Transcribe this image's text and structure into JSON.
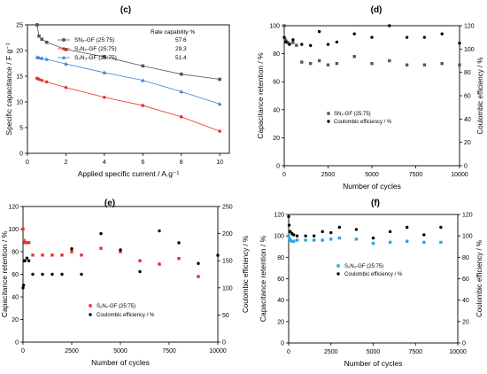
{
  "colors": {
    "black": "#333333",
    "dark_gray": "#555555",
    "red": "#e8302c",
    "blue": "#3a7fd5",
    "cyan": "#2aa6e0"
  },
  "chart_data": [
    {
      "panel": "(c)",
      "type": "line",
      "xlabel": "Applied specific current / A.g⁻¹",
      "ylabel": "Specific capacitance / F g⁻¹",
      "xlim": [
        0,
        10.5
      ],
      "ylim": [
        0,
        25
      ],
      "xticks": [
        "0",
        "2",
        "4",
        "6",
        "8",
        "10"
      ],
      "yticks": [
        "0",
        "5",
        "10",
        "15",
        "20",
        "25"
      ],
      "legend_title": "Rate capability %",
      "series": [
        {
          "name": "SN₂-GF (25:75)",
          "rate": "57.6",
          "color": "#555555",
          "marker": "square",
          "x": [
            0.5,
            0.6,
            0.75,
            1,
            2,
            4,
            6,
            8,
            10
          ],
          "y": [
            25,
            22.8,
            22.2,
            21.6,
            20.2,
            18.8,
            17.0,
            15.4,
            14.4
          ]
        },
        {
          "name": "S₂N₂-GF (25:75)",
          "rate": "29.3",
          "color": "#e8302c",
          "marker": "circle",
          "x": [
            0.5,
            0.6,
            0.75,
            1,
            2,
            4,
            6,
            8,
            10
          ],
          "y": [
            14.6,
            14.4,
            14.2,
            13.9,
            12.8,
            10.9,
            9.3,
            7.1,
            4.3
          ]
        },
        {
          "name": "S₂N₃-GF (25:75)",
          "rate": "51.4",
          "color": "#3a7fd5",
          "marker": "triangle",
          "x": [
            0.5,
            0.6,
            0.75,
            1,
            2,
            4,
            6,
            8,
            10
          ],
          "y": [
            18.7,
            18.6,
            18.5,
            18.3,
            17.4,
            15.7,
            14.2,
            12.0,
            9.6
          ]
        }
      ]
    },
    {
      "panel": "(d)",
      "type": "scatter",
      "xlabel": "Number of cycles",
      "ylabel": "Capacitance retention / %",
      "ylabel2": "Coulombic efficiency / %",
      "xlim": [
        0,
        10000
      ],
      "ylim": [
        0,
        100
      ],
      "ylim2": [
        0,
        120
      ],
      "xticks": [
        "0",
        "2500",
        "5000",
        "7500",
        "10000"
      ],
      "yticks": [
        "0",
        "20",
        "40",
        "60",
        "80",
        "100"
      ],
      "yticks2": [
        "0",
        "20",
        "40",
        "60",
        "80",
        "100",
        "120"
      ],
      "legend": [
        "SN₂-GF (25:75)",
        "Coulombic efficiency / %"
      ],
      "series": [
        {
          "name": "SN₂-GF (25:75)",
          "axis": "left",
          "marker": "square",
          "color": "#555555",
          "x": [
            0,
            50,
            100,
            200,
            300,
            500,
            700,
            1000,
            1500,
            2000,
            2500,
            3000,
            4000,
            5000,
            6000,
            7000,
            8000,
            9000,
            10000
          ],
          "y": [
            100,
            90,
            89,
            88,
            87,
            88,
            86,
            74,
            73,
            75,
            72,
            73,
            78,
            73,
            75,
            72,
            72,
            73,
            72
          ]
        },
        {
          "name": "Coulombic efficiency / %",
          "axis": "right",
          "marker": "circle",
          "color": "#000000",
          "x": [
            0,
            100,
            300,
            500,
            1000,
            1500,
            2000,
            2500,
            3000,
            4000,
            5000,
            6000,
            7000,
            8000,
            9000,
            10000
          ],
          "y": [
            110,
            106,
            104,
            108,
            104,
            103,
            115,
            104,
            106,
            113,
            110,
            120,
            110,
            110,
            113,
            105
          ]
        }
      ]
    },
    {
      "panel": "(e)",
      "type": "scatter",
      "xlabel": "Number of cycles",
      "ylabel": "Capacitance retention / %",
      "ylabel2": "Coulombic efficiency / %",
      "xlim": [
        0,
        10000
      ],
      "ylim": [
        0,
        120
      ],
      "ylim2": [
        0,
        250
      ],
      "xticks": [
        "0",
        "2500",
        "5000",
        "7500",
        "10000"
      ],
      "yticks": [
        "0",
        "20",
        "40",
        "60",
        "80",
        "100",
        "120"
      ],
      "yticks2": [
        "0",
        "50",
        "100",
        "150",
        "200",
        "250"
      ],
      "legend": [
        "S₂N₂-GF (25:75)",
        "Coulombic efficiency / %"
      ],
      "series": [
        {
          "name": "S₂N₂-GF (25:75)",
          "axis": "left",
          "marker": "square",
          "color": "#e8302c",
          "x": [
            0,
            50,
            100,
            200,
            300,
            500,
            1000,
            1500,
            2000,
            2500,
            3000,
            4000,
            5000,
            6000,
            7000,
            8000,
            9000
          ],
          "y": [
            100,
            90,
            88,
            88,
            88,
            77,
            77,
            77,
            77,
            80,
            77,
            83,
            80,
            72,
            69,
            74,
            58
          ]
        },
        {
          "name": "Coulombic efficiency / %",
          "axis": "right",
          "marker": "circle",
          "color": "#000000",
          "x": [
            0,
            30,
            60,
            100,
            200,
            300,
            500,
            1000,
            1500,
            2000,
            2500,
            3000,
            4000,
            5000,
            6000,
            7000,
            8000,
            9000,
            10000
          ],
          "y": [
            100,
            105,
            150,
            150,
            155,
            150,
            125,
            125,
            125,
            125,
            172,
            125,
            200,
            170,
            130,
            205,
            183,
            145,
            160
          ]
        }
      ]
    },
    {
      "panel": "(f)",
      "type": "scatter",
      "xlabel": "Number of cycles",
      "ylabel": "Capacitance retention / %",
      "ylabel2": "Coulombic efficiency / %",
      "xlim": [
        0,
        10000
      ],
      "ylim": [
        0,
        120
      ],
      "ylim2": [
        0,
        120
      ],
      "xticks": [
        "0",
        "2500",
        "5000",
        "7500",
        "10000"
      ],
      "yticks": [
        "0",
        "20",
        "40",
        "60",
        "80",
        "100",
        "120"
      ],
      "yticks2": [
        "0",
        "20",
        "40",
        "60",
        "80",
        "100",
        "120"
      ],
      "legend": [
        "S₂N₃-GF (25:75)",
        "Coulombic efficiency / %"
      ],
      "series": [
        {
          "name": "S₂N₃-GF (25:75)",
          "axis": "left",
          "marker": "square",
          "color": "#2aa6e0",
          "x": [
            0,
            50,
            100,
            200,
            300,
            500,
            1000,
            1500,
            2000,
            2500,
            3000,
            4000,
            5000,
            6000,
            7000,
            8000,
            9000
          ],
          "y": [
            100,
            97,
            96,
            95,
            95,
            96,
            96,
            96,
            96,
            97,
            98,
            97,
            93,
            94,
            95,
            94,
            94
          ]
        },
        {
          "name": "Coulombic efficiency / %",
          "axis": "right",
          "marker": "circle",
          "color": "#000000",
          "x": [
            0,
            30,
            60,
            100,
            200,
            300,
            500,
            1000,
            1500,
            2000,
            2500,
            3000,
            4000,
            5000,
            6000,
            7000,
            8000,
            9000
          ],
          "y": [
            118,
            110,
            104,
            104,
            102,
            101,
            100,
            100,
            100,
            104,
            103,
            108,
            106,
            98,
            104,
            108,
            101,
            108
          ]
        }
      ]
    }
  ]
}
